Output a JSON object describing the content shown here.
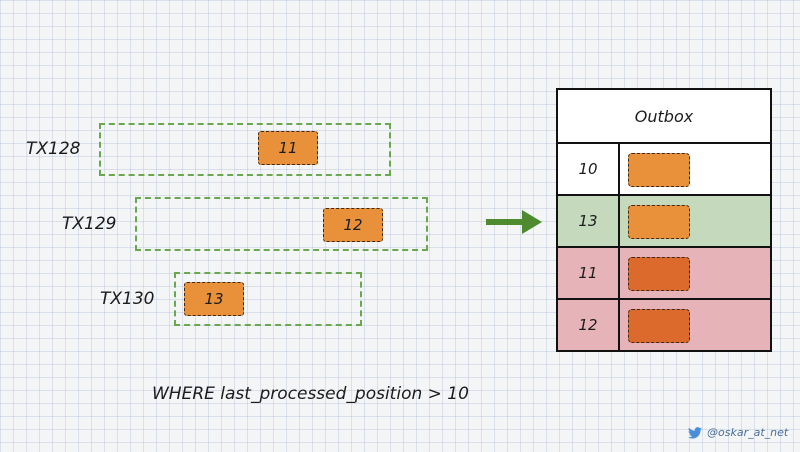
{
  "transactions": [
    {
      "label": "TX128",
      "value": "11"
    },
    {
      "label": "TX129",
      "value": "12"
    },
    {
      "label": "TX130",
      "value": "13"
    }
  ],
  "outbox": {
    "title": "Outbox",
    "rows": [
      {
        "position": "10",
        "status": "plain"
      },
      {
        "position": "13",
        "status": "green"
      },
      {
        "position": "11",
        "status": "red"
      },
      {
        "position": "12",
        "status": "red"
      }
    ]
  },
  "query": "WHERE last_processed_position > 10",
  "credit": "@oskar_at_net",
  "colors": {
    "dashed_border": "#6aa84f",
    "cell": "#e8913a",
    "cell_dark": "#dc6a2c",
    "row_green": "#c5d9bd",
    "row_red": "#e6b4b8",
    "arrow": "#4e8a2e",
    "twitter": "#4a90d9"
  },
  "icons": {
    "arrow": "arrow-right-icon",
    "twitter": "twitter-bird-icon"
  }
}
